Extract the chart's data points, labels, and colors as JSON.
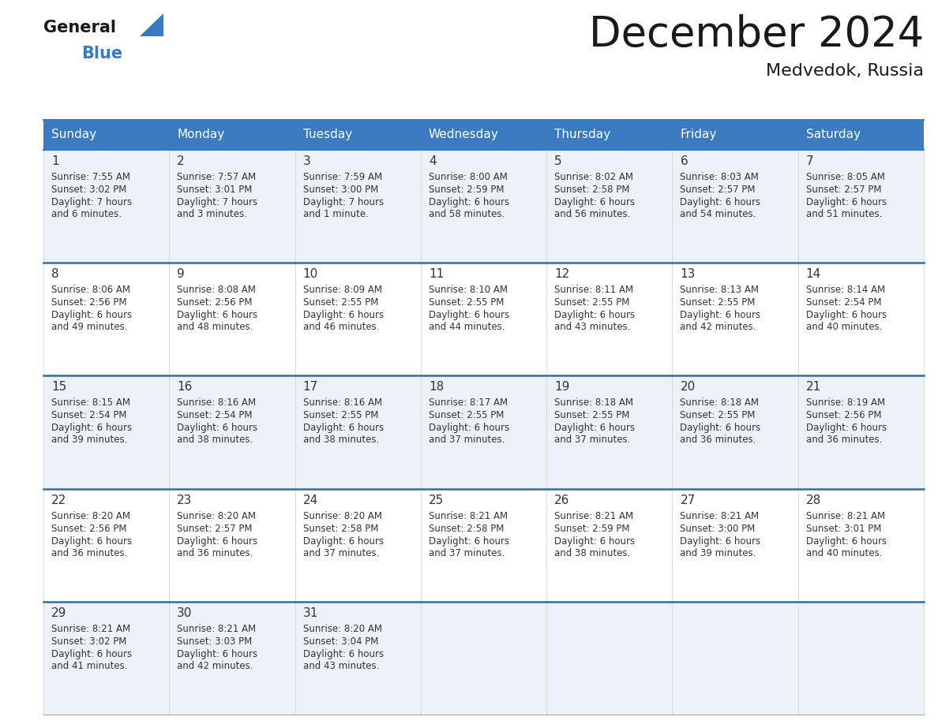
{
  "title": "December 2024",
  "subtitle": "Medvedok, Russia",
  "header_color": "#3a7abf",
  "header_text_color": "#ffffff",
  "days_of_week": [
    "Sunday",
    "Monday",
    "Tuesday",
    "Wednesday",
    "Thursday",
    "Friday",
    "Saturday"
  ],
  "bg_color_even": "#edf2f8",
  "bg_color_odd": "#ffffff",
  "row_divider_color": "#2e6da4",
  "text_color": "#333333",
  "calendar_data": [
    [
      {
        "day": 1,
        "sunrise": "7:55 AM",
        "sunset": "3:02 PM",
        "daylight": "7 hours and 6 minutes."
      },
      {
        "day": 2,
        "sunrise": "7:57 AM",
        "sunset": "3:01 PM",
        "daylight": "7 hours and 3 minutes."
      },
      {
        "day": 3,
        "sunrise": "7:59 AM",
        "sunset": "3:00 PM",
        "daylight": "7 hours and 1 minute."
      },
      {
        "day": 4,
        "sunrise": "8:00 AM",
        "sunset": "2:59 PM",
        "daylight": "6 hours and 58 minutes."
      },
      {
        "day": 5,
        "sunrise": "8:02 AM",
        "sunset": "2:58 PM",
        "daylight": "6 hours and 56 minutes."
      },
      {
        "day": 6,
        "sunrise": "8:03 AM",
        "sunset": "2:57 PM",
        "daylight": "6 hours and 54 minutes."
      },
      {
        "day": 7,
        "sunrise": "8:05 AM",
        "sunset": "2:57 PM",
        "daylight": "6 hours and 51 minutes."
      }
    ],
    [
      {
        "day": 8,
        "sunrise": "8:06 AM",
        "sunset": "2:56 PM",
        "daylight": "6 hours and 49 minutes."
      },
      {
        "day": 9,
        "sunrise": "8:08 AM",
        "sunset": "2:56 PM",
        "daylight": "6 hours and 48 minutes."
      },
      {
        "day": 10,
        "sunrise": "8:09 AM",
        "sunset": "2:55 PM",
        "daylight": "6 hours and 46 minutes."
      },
      {
        "day": 11,
        "sunrise": "8:10 AM",
        "sunset": "2:55 PM",
        "daylight": "6 hours and 44 minutes."
      },
      {
        "day": 12,
        "sunrise": "8:11 AM",
        "sunset": "2:55 PM",
        "daylight": "6 hours and 43 minutes."
      },
      {
        "day": 13,
        "sunrise": "8:13 AM",
        "sunset": "2:55 PM",
        "daylight": "6 hours and 42 minutes."
      },
      {
        "day": 14,
        "sunrise": "8:14 AM",
        "sunset": "2:54 PM",
        "daylight": "6 hours and 40 minutes."
      }
    ],
    [
      {
        "day": 15,
        "sunrise": "8:15 AM",
        "sunset": "2:54 PM",
        "daylight": "6 hours and 39 minutes."
      },
      {
        "day": 16,
        "sunrise": "8:16 AM",
        "sunset": "2:54 PM",
        "daylight": "6 hours and 38 minutes."
      },
      {
        "day": 17,
        "sunrise": "8:16 AM",
        "sunset": "2:55 PM",
        "daylight": "6 hours and 38 minutes."
      },
      {
        "day": 18,
        "sunrise": "8:17 AM",
        "sunset": "2:55 PM",
        "daylight": "6 hours and 37 minutes."
      },
      {
        "day": 19,
        "sunrise": "8:18 AM",
        "sunset": "2:55 PM",
        "daylight": "6 hours and 37 minutes."
      },
      {
        "day": 20,
        "sunrise": "8:18 AM",
        "sunset": "2:55 PM",
        "daylight": "6 hours and 36 minutes."
      },
      {
        "day": 21,
        "sunrise": "8:19 AM",
        "sunset": "2:56 PM",
        "daylight": "6 hours and 36 minutes."
      }
    ],
    [
      {
        "day": 22,
        "sunrise": "8:20 AM",
        "sunset": "2:56 PM",
        "daylight": "6 hours and 36 minutes."
      },
      {
        "day": 23,
        "sunrise": "8:20 AM",
        "sunset": "2:57 PM",
        "daylight": "6 hours and 36 minutes."
      },
      {
        "day": 24,
        "sunrise": "8:20 AM",
        "sunset": "2:58 PM",
        "daylight": "6 hours and 37 minutes."
      },
      {
        "day": 25,
        "sunrise": "8:21 AM",
        "sunset": "2:58 PM",
        "daylight": "6 hours and 37 minutes."
      },
      {
        "day": 26,
        "sunrise": "8:21 AM",
        "sunset": "2:59 PM",
        "daylight": "6 hours and 38 minutes."
      },
      {
        "day": 27,
        "sunrise": "8:21 AM",
        "sunset": "3:00 PM",
        "daylight": "6 hours and 39 minutes."
      },
      {
        "day": 28,
        "sunrise": "8:21 AM",
        "sunset": "3:01 PM",
        "daylight": "6 hours and 40 minutes."
      }
    ],
    [
      {
        "day": 29,
        "sunrise": "8:21 AM",
        "sunset": "3:02 PM",
        "daylight": "6 hours and 41 minutes."
      },
      {
        "day": 30,
        "sunrise": "8:21 AM",
        "sunset": "3:03 PM",
        "daylight": "6 hours and 42 minutes."
      },
      {
        "day": 31,
        "sunrise": "8:20 AM",
        "sunset": "3:04 PM",
        "daylight": "6 hours and 43 minutes."
      },
      null,
      null,
      null,
      null
    ]
  ],
  "logo_arrow_color": "#3a7abf",
  "title_fontsize": 38,
  "subtitle_fontsize": 16,
  "header_fontsize": 11,
  "day_num_fontsize": 11,
  "cell_text_fontsize": 8.5
}
